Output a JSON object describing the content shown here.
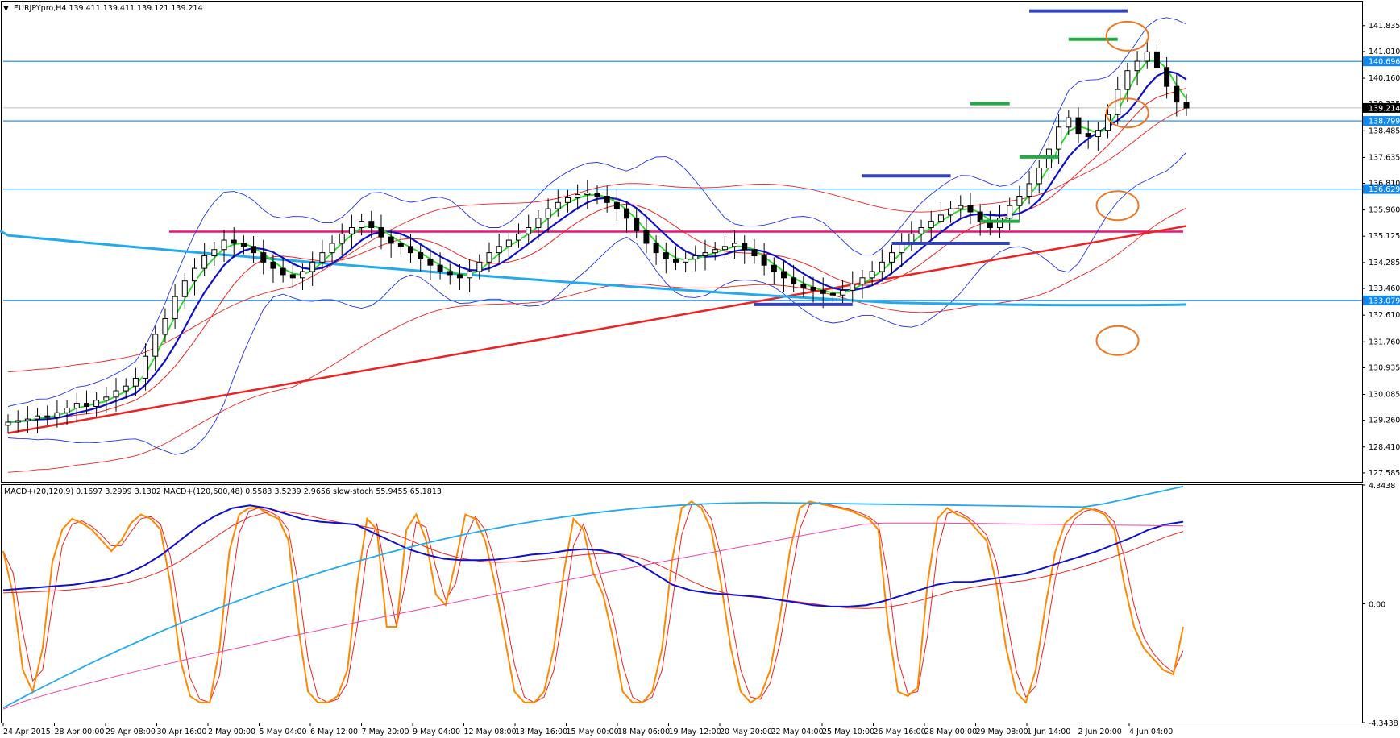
{
  "header": {
    "arrow_glyph": "▼",
    "title": "EURJPYpro,H4  139.411 139.411 139.121 139.214"
  },
  "indicator_header": "MACD+(20,120,9) 0.1697 3.2999 3.1302  MACD+(120,600,48) 0.5583 3.5239 2.9656  slow-stoch 55.9455 65.1813",
  "colors": {
    "up_candle": "#ffffff",
    "down_candle": "#000000",
    "ma_fast": "#22dd22",
    "ma_mid": "#1010cc",
    "ma_slow_red": "#ee2222",
    "ma_long_cyan": "#22aaee",
    "bollinger": "#2233ee",
    "envelope": "#ee2222",
    "hline": "#1188ee",
    "magenta_level": "#ee1177",
    "level_blue": "#3344bb",
    "level_green": "#22aa44",
    "circle": "#ee7722",
    "stoch_k": "#ff8800",
    "stoch_d": "#ee2222",
    "macd_fast": "#1010cc",
    "macd_fast_signal": "#ee2222",
    "macd_slow": "#22aaee",
    "macd_slow_signal": "#ee44aa"
  },
  "chart_data": [
    {
      "type": "candlestick",
      "symbol": "EURJPYpro",
      "timeframe": "H4",
      "ohlc": {
        "open": 139.411,
        "high": 139.411,
        "low": 139.121,
        "close": 139.214
      },
      "ylim": [
        127.3,
        142.6
      ],
      "price_ticks": [
        "141.835",
        "141.010",
        "140.160",
        "139.335",
        "138.485",
        "137.635",
        "136.810",
        "135.960",
        "135.125",
        "134.285",
        "133.460",
        "132.610",
        "131.760",
        "130.935",
        "130.085",
        "129.260",
        "128.410",
        "127.585"
      ],
      "price_tick_values": [
        141.835,
        141.01,
        140.16,
        139.335,
        138.485,
        137.635,
        136.81,
        135.96,
        135.125,
        134.285,
        133.46,
        132.61,
        131.76,
        130.935,
        130.085,
        129.26,
        128.41,
        127.585
      ],
      "horizontal_lines": [
        {
          "label": "140.696",
          "value": 140.696
        },
        {
          "label": "138.799",
          "value": 138.799
        },
        {
          "label": "136.629",
          "value": 136.629
        },
        {
          "label": "133.079",
          "value": 133.079
        }
      ],
      "current_price": {
        "label": "139.214",
        "value": 139.214
      },
      "magenta_level": 135.27,
      "closes": [
        129.2,
        129.25,
        129.3,
        129.4,
        129.35,
        129.5,
        129.65,
        129.8,
        129.7,
        129.9,
        130.0,
        130.2,
        130.35,
        130.6,
        131.3,
        132.0,
        132.5,
        133.2,
        133.7,
        134.1,
        134.5,
        134.7,
        135.0,
        134.9,
        134.8,
        134.6,
        134.3,
        134.1,
        133.9,
        133.8,
        134.0,
        134.3,
        134.6,
        134.9,
        135.2,
        135.4,
        135.6,
        135.4,
        135.1,
        134.9,
        134.8,
        134.6,
        134.4,
        134.2,
        134.0,
        133.9,
        133.8,
        134.0,
        134.3,
        134.6,
        134.8,
        135.0,
        135.2,
        135.4,
        135.7,
        136.0,
        136.2,
        136.35,
        136.45,
        136.5,
        136.4,
        136.2,
        136.0,
        135.7,
        135.3,
        134.9,
        134.6,
        134.4,
        134.3,
        134.4,
        134.5,
        134.6,
        134.7,
        134.8,
        134.9,
        134.7,
        134.5,
        134.2,
        134.0,
        133.8,
        133.6,
        133.5,
        133.4,
        133.3,
        133.25,
        133.4,
        133.6,
        133.8,
        134.0,
        134.3,
        134.6,
        134.9,
        135.2,
        135.4,
        135.6,
        135.8,
        136.0,
        136.1,
        135.9,
        135.6,
        135.4,
        135.7,
        136.1,
        136.4,
        136.8,
        137.3,
        137.9,
        138.6,
        138.9,
        138.4,
        138.3,
        138.5,
        139.0,
        139.8,
        140.4,
        140.7,
        141.0,
        140.5,
        139.9,
        139.4,
        139.21
      ],
      "events": [
        {
          "name": "level-blue-top",
          "color": "blue",
          "value": 142.3,
          "from_bar": 104,
          "to_bar": 114
        },
        {
          "name": "level-green-top",
          "color": "green",
          "value": 141.4,
          "from_bar": 108,
          "to_bar": 113
        },
        {
          "name": "level-green-2",
          "color": "green",
          "value": 139.35,
          "from_bar": 98,
          "to_bar": 102
        },
        {
          "name": "level-green-3",
          "color": "green",
          "value": 137.65,
          "from_bar": 103,
          "to_bar": 107
        },
        {
          "name": "level-blue-2",
          "color": "blue",
          "value": 137.05,
          "from_bar": 87,
          "to_bar": 96
        },
        {
          "name": "level-green-4",
          "color": "green",
          "value": 135.6,
          "from_bar": 99,
          "to_bar": 103
        },
        {
          "name": "level-blue-3",
          "color": "blue",
          "value": 134.9,
          "from_bar": 90,
          "to_bar": 102
        },
        {
          "name": "level-blue-4",
          "color": "blue",
          "value": 132.95,
          "from_bar": 76,
          "to_bar": 86
        }
      ],
      "circles": [
        {
          "name": "circle-top",
          "bar": 113,
          "value": 141.5
        },
        {
          "name": "circle-mid",
          "bar": 113,
          "value": 139.05
        },
        {
          "name": "circle-low",
          "bar": 112,
          "value": 136.1
        },
        {
          "name": "circle-bottom",
          "bar": 112,
          "value": 131.8
        }
      ]
    },
    {
      "type": "line",
      "name": "indicator",
      "ylim": [
        -4.3438,
        4.3438
      ],
      "ticks": [
        "4.3438",
        "0.00",
        "-4.3438"
      ],
      "tick_values": [
        4.3438,
        0.0,
        -4.3438
      ],
      "stoch_k": [
        75,
        55,
        20,
        10,
        30,
        70,
        85,
        90,
        88,
        85,
        80,
        75,
        80,
        88,
        92,
        90,
        85,
        60,
        25,
        8,
        5,
        5,
        30,
        75,
        92,
        95,
        95,
        92,
        90,
        80,
        40,
        10,
        5,
        5,
        8,
        20,
        60,
        90,
        85,
        40,
        40,
        85,
        92,
        80,
        55,
        50,
        70,
        92,
        90,
        80,
        60,
        35,
        10,
        5,
        5,
        10,
        30,
        65,
        90,
        85,
        65,
        55,
        35,
        10,
        5,
        5,
        10,
        30,
        70,
        95,
        98,
        95,
        85,
        60,
        30,
        10,
        5,
        8,
        20,
        45,
        75,
        95,
        98,
        97,
        96,
        95,
        94,
        92,
        90,
        85,
        40,
        10,
        8,
        12,
        60,
        90,
        95,
        92,
        90,
        85,
        80,
        60,
        30,
        10,
        5,
        20,
        50,
        75,
        88,
        92,
        95,
        94,
        92,
        85,
        60,
        40,
        30,
        25,
        20,
        18,
        40
      ],
      "macd_fast": [
        0.5,
        0.55,
        0.6,
        0.65,
        0.7,
        0.8,
        0.9,
        1.1,
        1.4,
        1.8,
        2.3,
        2.8,
        3.2,
        3.5,
        3.6,
        3.5,
        3.3,
        3.1,
        3.0,
        2.95,
        2.9,
        2.6,
        2.3,
        2.0,
        1.8,
        1.65,
        1.6,
        1.6,
        1.62,
        1.7,
        1.8,
        1.85,
        1.95,
        2.0,
        1.95,
        1.8,
        1.5,
        1.1,
        0.7,
        0.5,
        0.4,
        0.35,
        0.3,
        0.25,
        0.15,
        0.05,
        -0.05,
        -0.1,
        -0.1,
        -0.05,
        0.1,
        0.3,
        0.5,
        0.7,
        0.8,
        0.8,
        0.9,
        1.0,
        1.1,
        1.3,
        1.5,
        1.7,
        1.9,
        2.15,
        2.4,
        2.7,
        2.9,
        3.0
      ]
    }
  ],
  "x_axis": {
    "labels": [
      "24 Apr 2015",
      "28 Apr 00:00",
      "29 Apr 08:00",
      "30 Apr 16:00",
      "2 May 00:00",
      "5 May 04:00",
      "6 May 12:00",
      "7 May 20:00",
      "9 May 04:00",
      "12 May 08:00",
      "13 May 16:00",
      "15 May 00:00",
      "18 May 06:00",
      "19 May 12:00",
      "20 May 20:00",
      "22 May 04:00",
      "25 May 10:00",
      "26 May 16:00",
      "28 May 00:00",
      "29 May 08:00",
      "1 Jun 14:00",
      "2 Jun 20:00",
      "4 Jun 04:00"
    ]
  }
}
